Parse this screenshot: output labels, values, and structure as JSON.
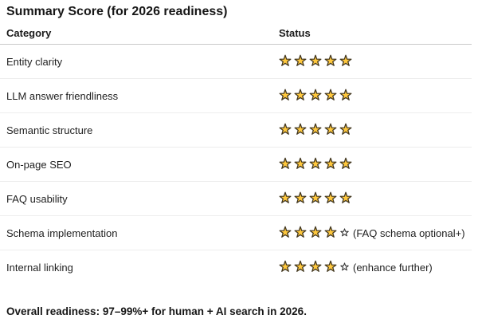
{
  "title": "Summary Score (for 2026 readiness)",
  "table": {
    "columns": [
      {
        "label": "Category"
      },
      {
        "label": "Status"
      }
    ],
    "rows": [
      {
        "category": "Entity clarity",
        "stars_filled": 5,
        "stars_outline": 0,
        "note": ""
      },
      {
        "category": "LLM answer friendliness",
        "stars_filled": 5,
        "stars_outline": 0,
        "note": ""
      },
      {
        "category": "Semantic structure",
        "stars_filled": 5,
        "stars_outline": 0,
        "note": ""
      },
      {
        "category": "On-page SEO",
        "stars_filled": 5,
        "stars_outline": 0,
        "note": ""
      },
      {
        "category": "FAQ usability",
        "stars_filled": 5,
        "stars_outline": 0,
        "note": ""
      },
      {
        "category": "Schema implementation",
        "stars_filled": 4,
        "stars_outline": 1,
        "note": "(FAQ schema optional+)"
      },
      {
        "category": "Internal linking",
        "stars_filled": 4,
        "stars_outline": 1,
        "note": "(enhance further)"
      }
    ]
  },
  "footer": {
    "text": "Overall readiness: 97–99%+ for human + AI search in 2026."
  },
  "icons": {
    "filled_star": "star-filled-icon",
    "outline_star": "star-outline-icon"
  },
  "colors": {
    "background": "#ffffff",
    "text": "#1b1b1b",
    "star_fill": "#FFC83D",
    "star_stroke": "#41361f",
    "outline_star_fill": "#ffffff",
    "outline_star_stroke": "#2f2f2f",
    "header_divider": "#c9c9c9",
    "row_divider": "#ededed"
  }
}
